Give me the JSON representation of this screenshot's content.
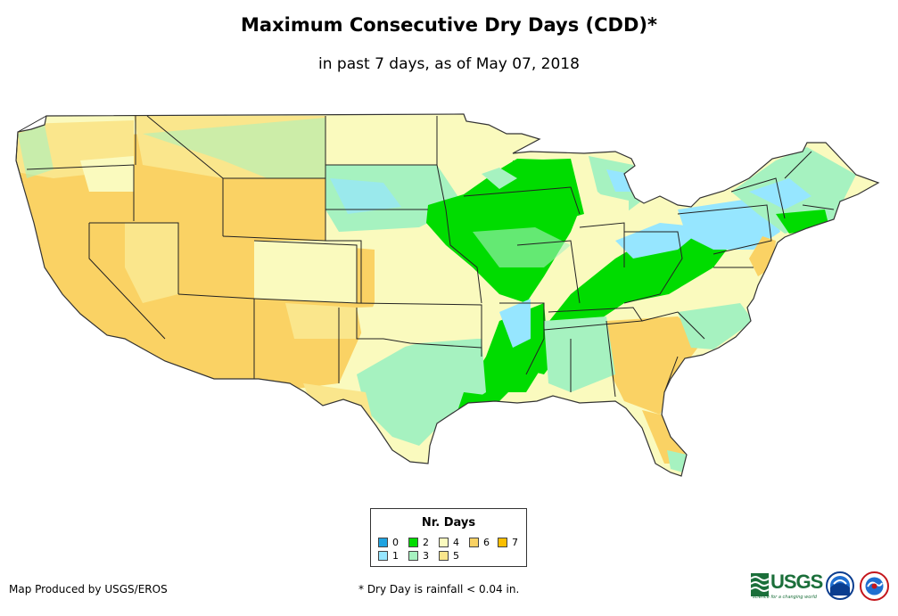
{
  "title": "Maximum Consecutive Dry Days (CDD)*",
  "subtitle": "in past 7 days, as of May 07, 2018",
  "legend": {
    "title": "Nr. Days",
    "items": [
      {
        "label": "0",
        "color": "#1fa3e0"
      },
      {
        "label": "1",
        "color": "#96e6ff"
      },
      {
        "label": "2",
        "color": "#00dc00"
      },
      {
        "label": "3",
        "color": "#a6f2c0"
      },
      {
        "label": "4",
        "color": "#fafabe"
      },
      {
        "label": "5",
        "color": "#fae68c"
      },
      {
        "label": "6",
        "color": "#fad264"
      },
      {
        "label": "7",
        "color": "#fabe00"
      }
    ]
  },
  "credit": "Map Produced by USGS/EROS",
  "footnote": "* Dry Day is rainfall < 0.04 in.",
  "logos": {
    "usgs_text": "USGS",
    "usgs_tagline": "science for a changing world",
    "noaa_icon": "noaa-logo-icon",
    "nws_icon": "nws-logo-icon"
  },
  "colors": {
    "state_border": "#222222",
    "map_outline": "#333333"
  }
}
